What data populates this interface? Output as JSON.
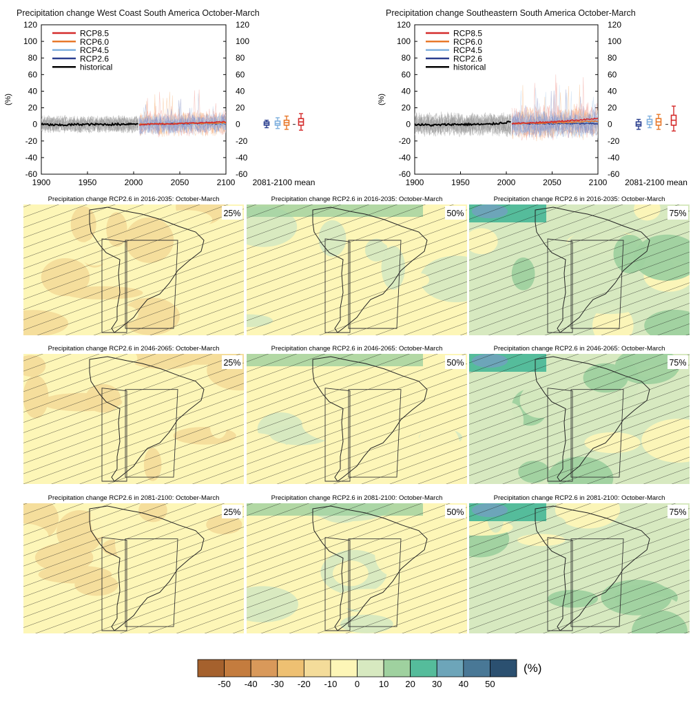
{
  "timeseries": [
    {
      "title": "Precipitation change West Coast South America October-March",
      "ylabel": "(%)",
      "xlim": [
        1900,
        2100
      ],
      "ylim": [
        -60,
        120
      ],
      "xticks": [
        "1900",
        "1950",
        "2000",
        "2050",
        "2100"
      ],
      "yticks": [
        "-60",
        "-40",
        "-20",
        "0",
        "20",
        "40",
        "60",
        "80",
        "100",
        "120"
      ],
      "right_label": "2081-2100 mean",
      "legend": [
        "RCP8.5",
        "RCP6.0",
        "RCP4.5",
        "RCP2.6",
        "historical"
      ],
      "boxplots": [
        {
          "scenario": "RCP2.6",
          "color": "#2b3f8f",
          "median": 1,
          "q1": -1,
          "q3": 3,
          "lo": -4,
          "hi": 5
        },
        {
          "scenario": "RCP4.5",
          "color": "#7fb0de",
          "median": 1,
          "q1": -1,
          "q3": 4,
          "lo": -5,
          "hi": 8
        },
        {
          "scenario": "RCP6.0",
          "color": "#e8782a",
          "median": 2,
          "q1": -1,
          "q3": 5,
          "lo": -6,
          "hi": 10
        },
        {
          "scenario": "RCP8.5",
          "color": "#d42a2a",
          "median": 3,
          "q1": -1,
          "q3": 7,
          "lo": -7,
          "hi": 13
        }
      ]
    },
    {
      "title": "Precipitation change Southeastern South America October-March",
      "ylabel": "(%)",
      "xlim": [
        1900,
        2100
      ],
      "ylim": [
        -60,
        120
      ],
      "xticks": [
        "1900",
        "1950",
        "2000",
        "2050",
        "2100"
      ],
      "yticks": [
        "-60",
        "-40",
        "-20",
        "0",
        "20",
        "40",
        "60",
        "80",
        "100",
        "120"
      ],
      "right_label": "2081-2100 mean",
      "legend": [
        "RCP8.5",
        "RCP6.0",
        "RCP4.5",
        "RCP2.6",
        "historical"
      ],
      "boxplots": [
        {
          "scenario": "RCP2.6",
          "color": "#2b3f8f",
          "median": 0,
          "q1": -2,
          "q3": 3,
          "lo": -6,
          "hi": 6
        },
        {
          "scenario": "RCP4.5",
          "color": "#7fb0de",
          "median": 3,
          "q1": 0,
          "q3": 6,
          "lo": -4,
          "hi": 10
        },
        {
          "scenario": "RCP6.0",
          "color": "#e8782a",
          "median": 3,
          "q1": -1,
          "q3": 7,
          "lo": -6,
          "hi": 12
        },
        {
          "scenario": "RCP8.5",
          "color": "#d42a2a",
          "median": 5,
          "q1": -1,
          "q3": 11,
          "lo": -8,
          "hi": 22
        }
      ]
    }
  ],
  "map_panels": [
    {
      "title": "Precipitation change RCP2.6 in 2016-2035: October-March",
      "percentile": "25%",
      "base_class": 5
    },
    {
      "title": "Precipitation change RCP2.6 in 2016-2035: October-March",
      "percentile": "50%",
      "base_class": 5
    },
    {
      "title": "Precipitation change RCP2.6 in 2016-2035: October-March",
      "percentile": "75%",
      "base_class": 6
    },
    {
      "title": "Precipitation change RCP2.6 in 2046-2065: October-March",
      "percentile": "25%",
      "base_class": 5
    },
    {
      "title": "Precipitation change RCP2.6 in 2046-2065: October-March",
      "percentile": "50%",
      "base_class": 5
    },
    {
      "title": "Precipitation change RCP2.6 in 2046-2065: October-March",
      "percentile": "75%",
      "base_class": 6
    },
    {
      "title": "Precipitation change RCP2.6 in 2081-2100: October-March",
      "percentile": "25%",
      "base_class": 5
    },
    {
      "title": "Precipitation change RCP2.6 in 2081-2100: October-March",
      "percentile": "50%",
      "base_class": 5
    },
    {
      "title": "Precipitation change RCP2.6 in 2081-2100: October-March",
      "percentile": "75%",
      "base_class": 6
    }
  ],
  "colorbar": {
    "unit": "(%)",
    "tick_labels": [
      "-50",
      "-40",
      "-30",
      "-20",
      "-10",
      "0",
      "10",
      "20",
      "30",
      "40",
      "50"
    ],
    "colors": [
      "#a5612d",
      "#c47c3e",
      "#d9995a",
      "#eec072",
      "#f4dc9a",
      "#fdf6b7",
      "#d7e9c0",
      "#9fd19f",
      "#55bc9b",
      "#6da5b9",
      "#497896",
      "#2b5070"
    ]
  },
  "chart_data": [
    {
      "type": "line",
      "title": "Precipitation change West Coast South America October-March",
      "xlabel": "",
      "ylabel": "(%)",
      "xlim": [
        1900,
        2100
      ],
      "ylim": [
        -60,
        120
      ],
      "series": [
        {
          "name": "historical",
          "x": [
            1900,
            1920,
            1940,
            1960,
            1980,
            2005
          ],
          "values": [
            0,
            -1,
            0,
            0,
            0,
            1
          ]
        },
        {
          "name": "RCP2.6",
          "x": [
            2006,
            2050,
            2100
          ],
          "values": [
            0,
            1,
            1
          ]
        },
        {
          "name": "RCP4.5",
          "x": [
            2006,
            2050,
            2100
          ],
          "values": [
            0,
            1,
            1
          ]
        },
        {
          "name": "RCP6.0",
          "x": [
            2006,
            2050,
            2100
          ],
          "values": [
            0,
            1,
            2
          ]
        },
        {
          "name": "RCP8.5",
          "x": [
            2006,
            2050,
            2100
          ],
          "values": [
            0,
            1,
            3
          ]
        }
      ]
    },
    {
      "type": "line",
      "title": "Precipitation change Southeastern South America October-March",
      "xlabel": "",
      "ylabel": "(%)",
      "xlim": [
        1900,
        2100
      ],
      "ylim": [
        -60,
        120
      ],
      "series": [
        {
          "name": "historical",
          "x": [
            1900,
            1920,
            1940,
            1960,
            1980,
            2005
          ],
          "values": [
            0,
            -1,
            0,
            0,
            0,
            3
          ]
        },
        {
          "name": "RCP2.6",
          "x": [
            2006,
            2050,
            2100
          ],
          "values": [
            1,
            1,
            1
          ]
        },
        {
          "name": "RCP4.5",
          "x": [
            2006,
            2050,
            2100
          ],
          "values": [
            1,
            2,
            3
          ]
        },
        {
          "name": "RCP6.0",
          "x": [
            2006,
            2050,
            2100
          ],
          "values": [
            1,
            2,
            4
          ]
        },
        {
          "name": "RCP8.5",
          "x": [
            2006,
            2050,
            2100
          ],
          "values": [
            1,
            3,
            7
          ]
        }
      ]
    }
  ]
}
